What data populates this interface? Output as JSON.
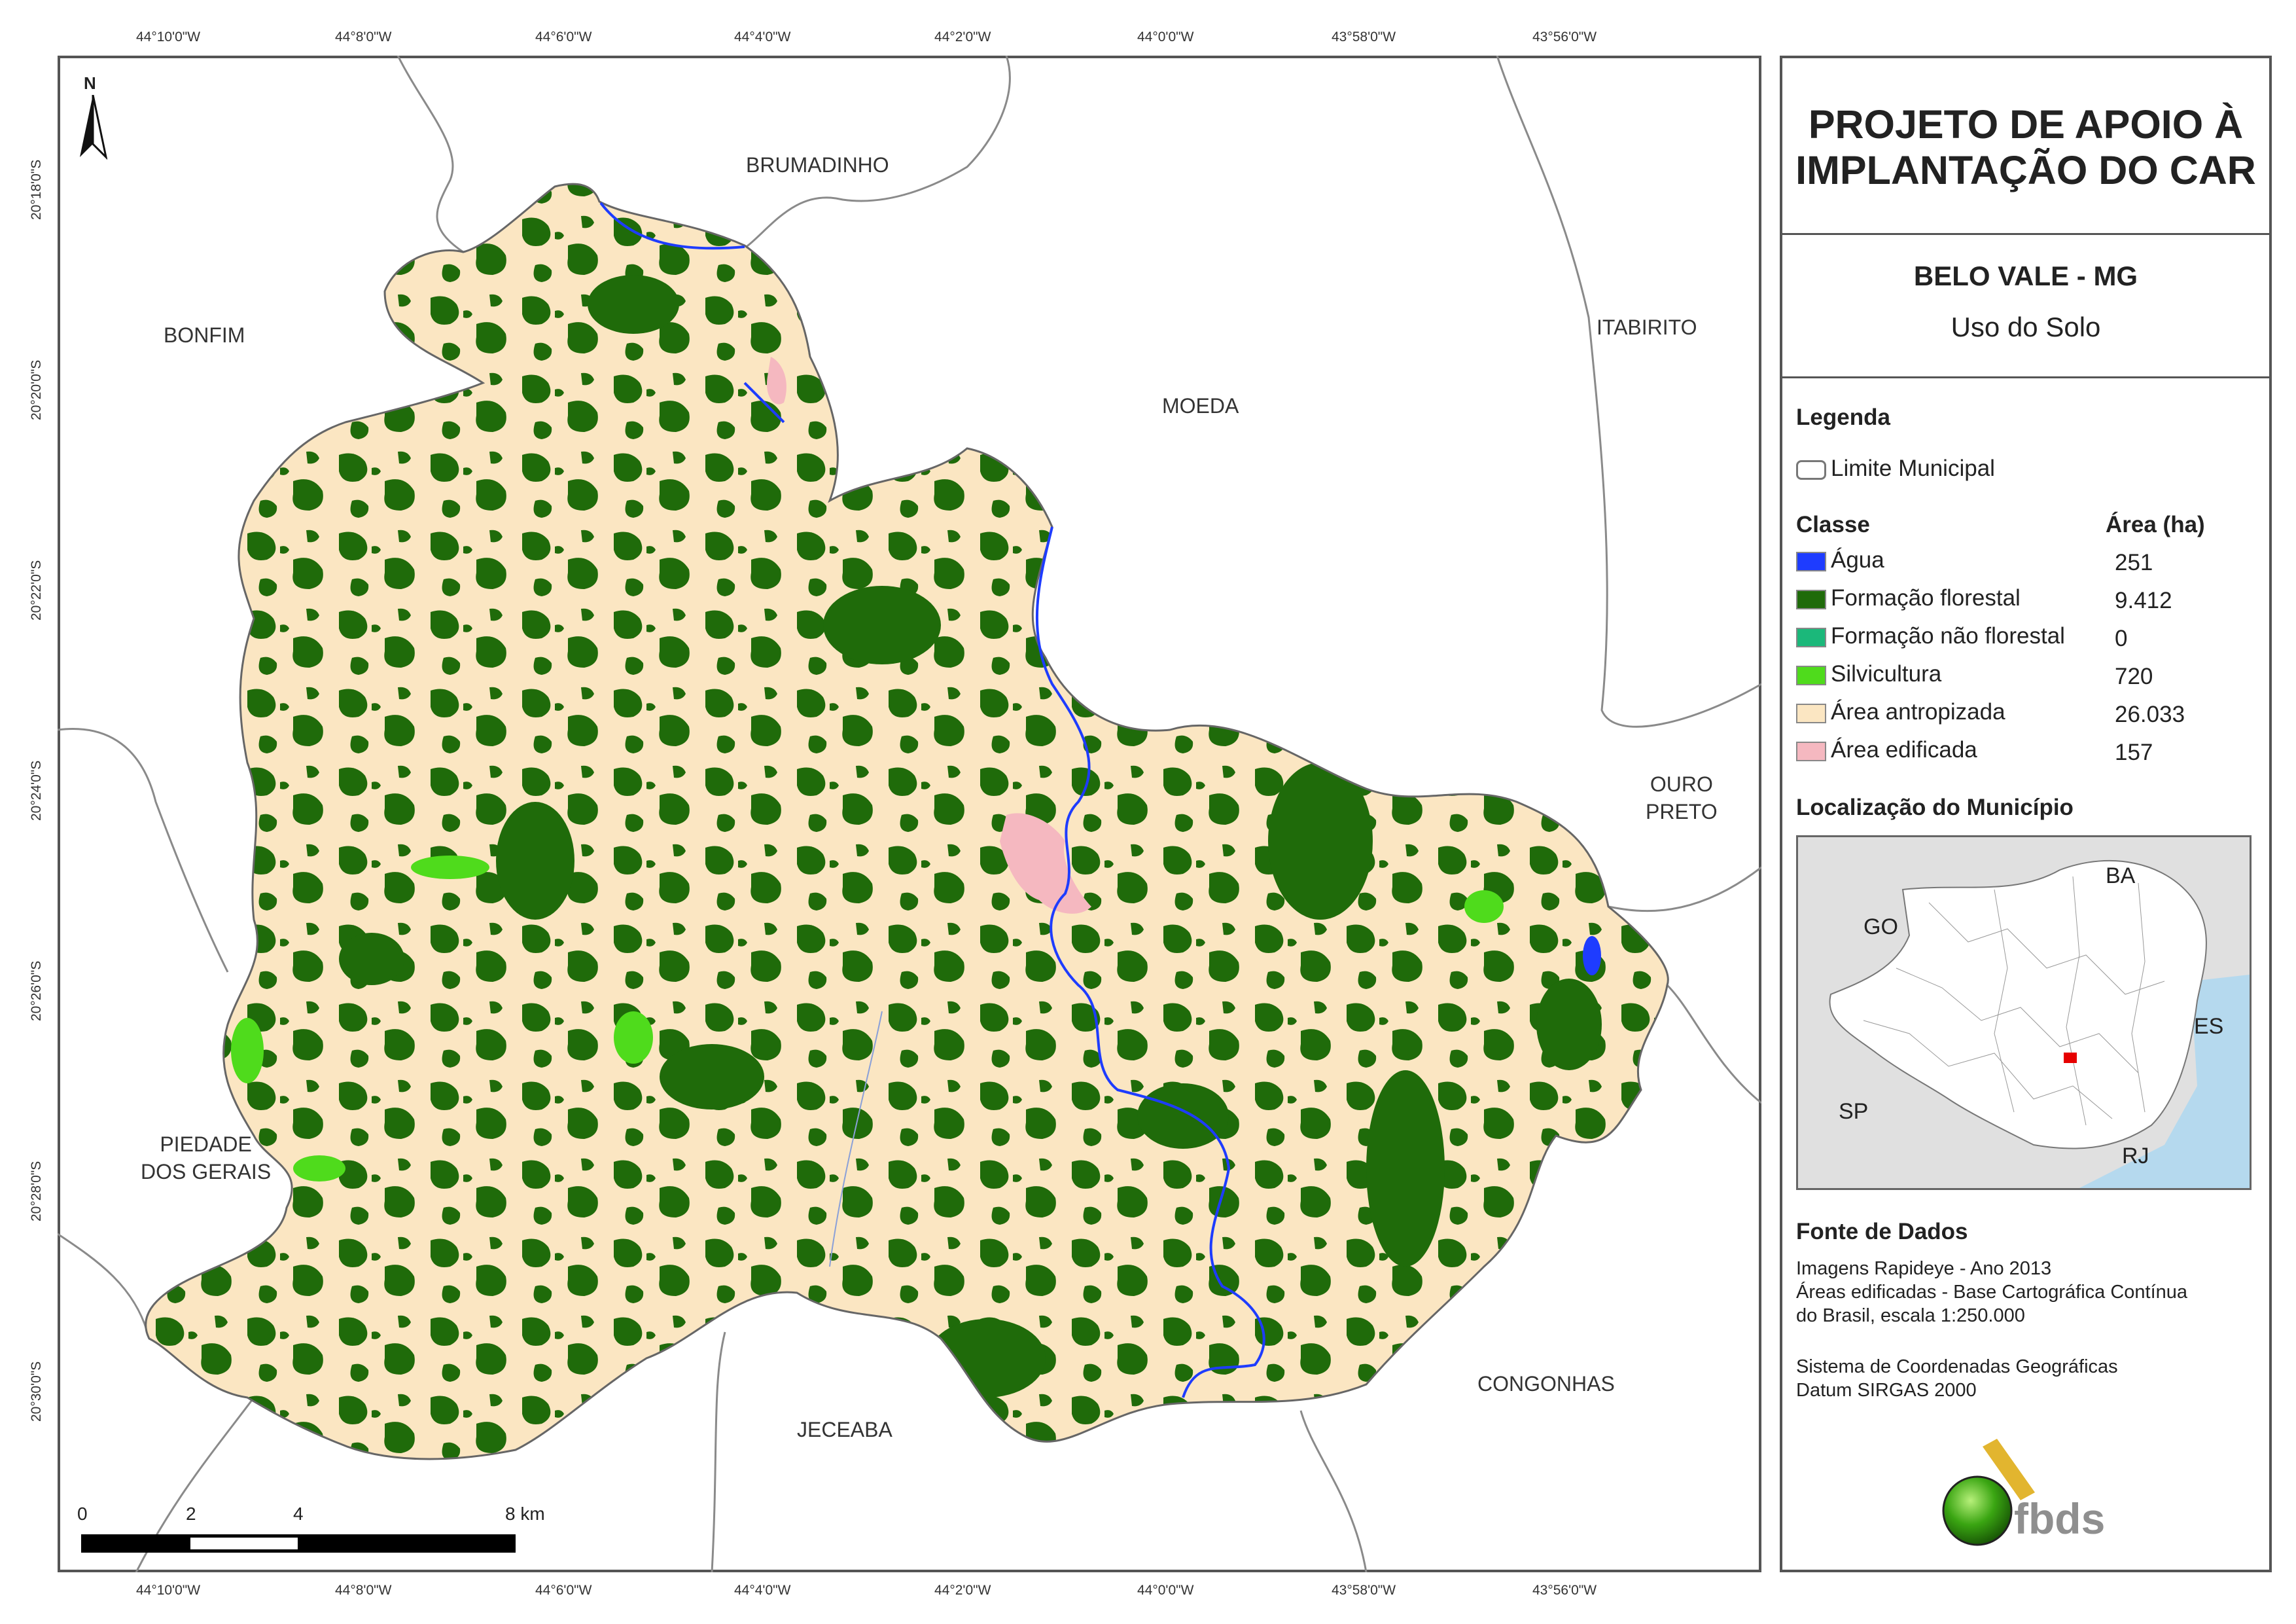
{
  "graticule": {
    "longitudes": [
      "44°10'0\"W",
      "44°8'0\"W",
      "44°6'0\"W",
      "44°4'0\"W",
      "44°2'0\"W",
      "44°0'0\"W",
      "43°58'0\"W",
      "43°56'0\"W"
    ],
    "latitudes": [
      "20°18'0\"S",
      "20°20'0\"S",
      "20°22'0\"S",
      "20°24'0\"S",
      "20°26'0\"S",
      "20°28'0\"S",
      "20°30'0\"S"
    ]
  },
  "north_arrow": "N",
  "neighbors": {
    "brumadinho": "BRUMADINHO",
    "bonfim": "BONFIM",
    "itabirito": "ITABIRITO",
    "moeda": "MOEDA",
    "ouro_preto": "OURO\nPRETO",
    "piedade": "PIEDADE\nDOS GERAIS",
    "jeceaba": "JECEABA",
    "congonhas": "CONGONHAS"
  },
  "scalebar": {
    "labels": [
      "0",
      "2",
      "4",
      "8 km"
    ]
  },
  "panel": {
    "title": "PROJETO DE APOIO À IMPLANTAÇÃO DO CAR",
    "municipality": "BELO VALE - MG",
    "theme": "Uso do Solo",
    "legend_title": "Legenda",
    "boundary_label": "Limite Municipal",
    "class_header": "Classe",
    "area_header": "Área (ha)",
    "classes": [
      {
        "name": "Água",
        "area": "251",
        "color": "#1e3cff"
      },
      {
        "name": "Formação florestal",
        "area": "9.412",
        "color": "#1f6b0a"
      },
      {
        "name": "Formação não florestal",
        "area": "0",
        "color": "#1bb87a"
      },
      {
        "name": "Silvicultura",
        "area": "720",
        "color": "#4fdb1c"
      },
      {
        "name": "Área antropizada",
        "area": "26.033",
        "color": "#fbe6c2"
      },
      {
        "name": "Área edificada",
        "area": "157",
        "color": "#f5b8c0"
      }
    ],
    "location_title": "Localização do Município",
    "states": {
      "ba": "BA",
      "go": "GO",
      "es": "ES",
      "sp": "SP",
      "rj": "RJ"
    },
    "source_title": "Fonte de Dados",
    "source_lines": [
      "Imagens Rapideye - Ano 2013",
      "Áreas edificadas - Base Cartográfica Contínua",
      "do Brasil, escala 1:250.000"
    ],
    "crs_lines": [
      "Sistema de Coordenadas Geográficas",
      "Datum SIRGAS 2000"
    ],
    "logo_text": "fbds"
  }
}
